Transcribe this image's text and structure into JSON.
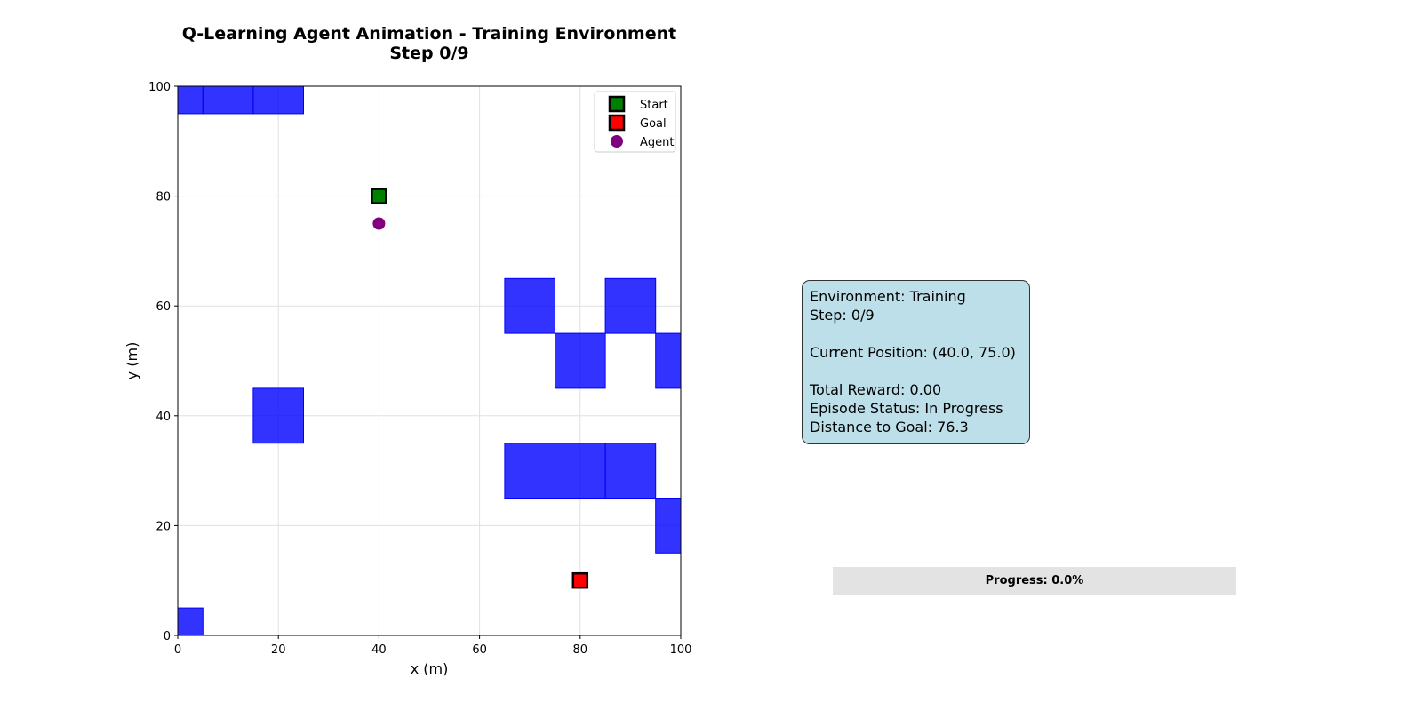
{
  "chart_data": {
    "type": "scatter",
    "title": "Q-Learning Agent Animation - Training Environment",
    "subtitle": "Step 0/9",
    "xlabel": "x (m)",
    "ylabel": "y (m)",
    "xlim": [
      0,
      100
    ],
    "ylim": [
      0,
      100
    ],
    "xticks": [
      "0",
      "20",
      "40",
      "60",
      "80",
      "100"
    ],
    "yticks": [
      "0",
      "20",
      "40",
      "60",
      "80",
      "100"
    ],
    "grid": true,
    "legend_position": "top-right",
    "obstacle_size": 10,
    "obstacle_color": "#0000ff",
    "obstacles": [
      [
        0,
        100
      ],
      [
        10,
        100
      ],
      [
        20,
        100
      ],
      [
        70,
        60
      ],
      [
        90,
        60
      ],
      [
        80,
        50
      ],
      [
        100,
        50
      ],
      [
        20,
        40
      ],
      [
        70,
        30
      ],
      [
        80,
        30
      ],
      [
        90,
        30
      ],
      [
        100,
        20
      ],
      [
        0,
        0
      ]
    ],
    "series": [
      {
        "name": "Start",
        "marker": "square",
        "color": "#008000",
        "points": [
          [
            40,
            80
          ]
        ]
      },
      {
        "name": "Goal",
        "marker": "square",
        "color": "#ff0000",
        "points": [
          [
            80,
            10
          ]
        ]
      },
      {
        "name": "Agent",
        "marker": "circle",
        "color": "#800080",
        "points": [
          [
            40,
            75
          ]
        ]
      }
    ]
  },
  "info_box": {
    "environment": "Environment: Training",
    "step": "Step: 0/9",
    "position": "Current Position: (40.0, 75.0)",
    "reward": "Total Reward: 0.00",
    "status": "Episode Status: In Progress",
    "distance": "Distance to Goal: 76.3"
  },
  "progress": {
    "label": "Progress: 0.0%",
    "fraction": 0.0
  }
}
